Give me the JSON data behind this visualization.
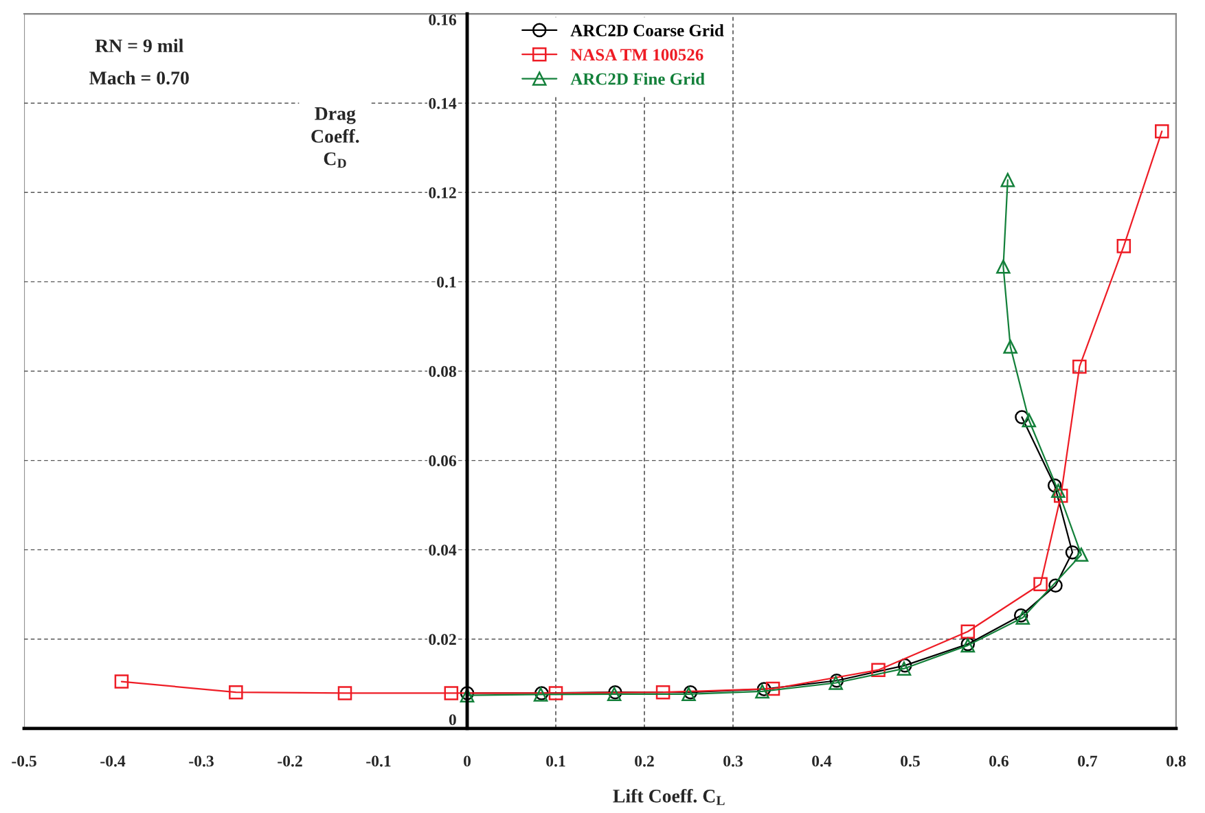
{
  "chart_data": {
    "type": "line",
    "xlabel": "Lift Coeff. C$_{L}$",
    "ylabel": "Drag\nCoeff.\nC$_{D}$",
    "annotations": [
      "RN = 9 mil",
      "Mach = 0.70"
    ],
    "xlim": [
      -0.5,
      0.8
    ],
    "xticks": [
      -0.5,
      -0.4,
      -0.3,
      -0.2,
      -0.1,
      0,
      0.1,
      0.2,
      0.3,
      0.4,
      0.5,
      0.6,
      0.7,
      0.8
    ],
    "ylim": [
      0,
      0.16
    ],
    "yticks": [
      0,
      0.02,
      0.04,
      0.06,
      0.08,
      0.1,
      0.12,
      0.14,
      0.16
    ],
    "grid": "y",
    "legend": "top",
    "line_style": "solid",
    "ref_lines": [
      {
        "axis": "x",
        "value": 0.1,
        "line_style": "dashed"
      },
      {
        "axis": "x",
        "value": 0.2,
        "line_style": "dashed"
      },
      {
        "axis": "x",
        "value": 0.3,
        "line_style": "dashed"
      }
    ],
    "series": [
      {
        "name": "ARC2D Coarse Grid",
        "color": "#000000",
        "marker": "circle",
        "x": [
          0,
          0.084,
          0.167,
          0.252,
          0.335,
          0.417,
          0.494,
          0.565,
          0.625,
          0.664,
          0.683,
          0.663,
          0.626
        ],
        "values": [
          0.0079,
          0.0079,
          0.0081,
          0.0081,
          0.0088,
          0.0107,
          0.0141,
          0.0189,
          0.0253,
          0.032,
          0.0394,
          0.0544,
          0.0697
        ]
      },
      {
        "name": "NASA TM 100526",
        "color": "#ee1c25",
        "marker": "square",
        "x": [
          -0.39,
          -0.261,
          -0.138,
          -0.018,
          0.1,
          0.221,
          0.345,
          0.464,
          0.565,
          0.647,
          0.67,
          0.691,
          0.741,
          0.784
        ],
        "values": [
          0.0105,
          0.0081,
          0.0079,
          0.0079,
          0.0079,
          0.0081,
          0.0089,
          0.0131,
          0.0217,
          0.0323,
          0.0521,
          0.081,
          0.108,
          0.1337
        ]
      },
      {
        "name": "ARC2D Fine Grid",
        "color": "#13803a",
        "marker": "triangle",
        "x": [
          0,
          0.083,
          0.166,
          0.25,
          0.333,
          0.416,
          0.493,
          0.565,
          0.627,
          0.693,
          0.667,
          0.634,
          0.613,
          0.605,
          0.61
        ],
        "values": [
          0.0074,
          0.0076,
          0.0077,
          0.0077,
          0.0083,
          0.0102,
          0.0134,
          0.0186,
          0.0248,
          0.0389,
          0.0532,
          0.069,
          0.0855,
          0.1034,
          0.1228
        ]
      }
    ]
  }
}
